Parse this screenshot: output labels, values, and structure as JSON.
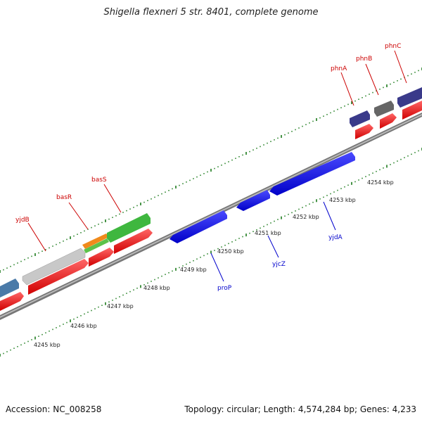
{
  "title": "Shigella flexneri 5 str. 8401, complete genome",
  "footer": {
    "accession": "Accession: NC_008258",
    "topology": "Topology: circular; Length: 4,574,284 bp; Genes: 4,233"
  },
  "scale_labels": [
    "4245 kbp",
    "4246 kbp",
    "4247 kbp",
    "4248 kbp",
    "4249 kbp",
    "4250 kbp",
    "4251 kbp",
    "4252 kbp",
    "4253 kbp",
    "4254 kbp"
  ],
  "genes_top": [
    {
      "name": "yjdB",
      "color": "#cc0000"
    },
    {
      "name": "basR",
      "color": "#cc0000"
    },
    {
      "name": "basS",
      "color": "#cc0000"
    },
    {
      "name": "phnA",
      "color": "#cc0000"
    },
    {
      "name": "phnB",
      "color": "#cc0000"
    },
    {
      "name": "phnC",
      "color": "#cc0000"
    }
  ],
  "genes_bottom": [
    {
      "name": "proP",
      "color": "#0000cc"
    },
    {
      "name": "yjcZ",
      "color": "#0000cc"
    },
    {
      "name": "yjdA",
      "color": "#0000cc"
    }
  ],
  "colors": {
    "forward_cds": "#ff0000",
    "reverse_cds": "#0000ff",
    "backbone": "#888888",
    "ticks": "#1a7a1a"
  }
}
